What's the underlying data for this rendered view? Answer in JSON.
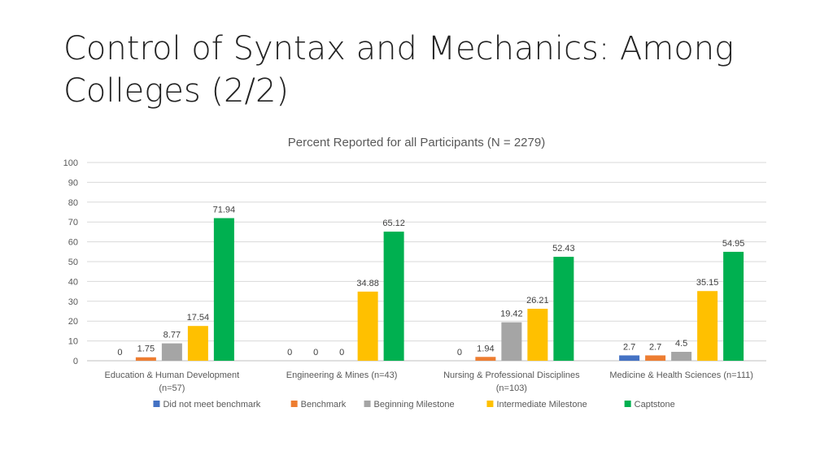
{
  "slide": {
    "title_lines": [
      "Control of Syntax and Mechanics: Among",
      "Colleges (2/2)"
    ]
  },
  "chart_data": {
    "type": "bar",
    "title": "Percent Reported for all Participants (N = 2279)",
    "categories": [
      [
        "Education & Human Development",
        "(n=57)"
      ],
      [
        "Engineering & Mines (n=43)"
      ],
      [
        "Nursing & Professional Disciplines",
        "(n=103)"
      ],
      [
        "Medicine & Health Sciences (n=111)"
      ]
    ],
    "ylim": [
      0,
      100
    ],
    "yticks": [
      0,
      10,
      20,
      30,
      40,
      50,
      60,
      70,
      80,
      90,
      100
    ],
    "grid": true,
    "legend_position": "bottom",
    "series": [
      {
        "name": "Did not meet benchmark",
        "color": "#4472C4",
        "values": [
          0,
          0,
          0,
          2.7
        ],
        "labels": [
          "0",
          "0",
          "0",
          "2.7"
        ]
      },
      {
        "name": "Benchmark",
        "color": "#ED7D31",
        "values": [
          1.75,
          0,
          1.94,
          2.7
        ],
        "labels": [
          "1.75",
          "0",
          "1.94",
          "2.7"
        ]
      },
      {
        "name": "Beginning Milestone",
        "color": "#A5A5A5",
        "values": [
          8.77,
          0,
          19.42,
          4.5
        ],
        "labels": [
          "8.77",
          "0",
          "19.42",
          "4.5"
        ]
      },
      {
        "name": "Intermediate Milestone",
        "color": "#FFC000",
        "values": [
          17.54,
          34.88,
          26.21,
          35.15
        ],
        "labels": [
          "17.54",
          "34.88",
          "26.21",
          "35.15"
        ]
      },
      {
        "name": "Captstone",
        "color": "#00B050",
        "values": [
          71.94,
          65.12,
          52.43,
          54.95
        ],
        "labels": [
          "71.94",
          "65.12",
          "52.43",
          "54.95"
        ]
      }
    ]
  }
}
